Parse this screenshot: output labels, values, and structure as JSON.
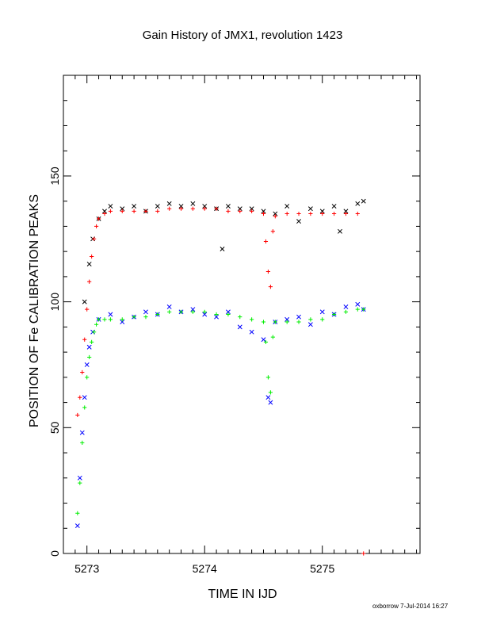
{
  "chart_data": {
    "type": "scatter",
    "title": "Gain History of JMX1, revolution 1423",
    "xlabel": "TIME IN IJD",
    "ylabel": "POSITION OF Fe CALIBRATION PEAKS",
    "xlim": [
      5272.8,
      5275.83
    ],
    "ylim": [
      0,
      190
    ],
    "x_ticks": [
      "5273",
      "5274",
      "5275"
    ],
    "y_ticks": [
      "0",
      "50",
      "100",
      "150"
    ],
    "grid": false,
    "legend": "none",
    "series": [
      {
        "marker": "x",
        "color": "#000000",
        "x": [
          5272.98,
          5273.02,
          5273.05,
          5273.1,
          5273.15,
          5273.2,
          5273.3,
          5273.4,
          5273.5,
          5273.6,
          5273.7,
          5273.8,
          5273.9,
          5274.0,
          5274.1,
          5274.15,
          5274.2,
          5274.3,
          5274.4,
          5274.5,
          5274.6,
          5274.7,
          5274.8,
          5274.9,
          5275.0,
          5275.1,
          5275.15,
          5275.2,
          5275.3,
          5275.35
        ],
        "y": [
          100,
          115,
          125,
          133,
          136,
          138,
          137,
          138,
          136,
          138,
          139,
          138,
          139,
          138,
          137,
          121,
          138,
          137,
          137,
          136,
          135,
          138,
          132,
          137,
          136,
          138,
          128,
          136,
          139,
          140
        ]
      },
      {
        "marker": "+",
        "color": "#ff0000",
        "x": [
          5272.92,
          5272.94,
          5272.96,
          5272.98,
          5273.0,
          5273.02,
          5273.04,
          5273.06,
          5273.08,
          5273.1,
          5273.15,
          5273.2,
          5273.3,
          5273.4,
          5273.5,
          5273.6,
          5273.7,
          5273.8,
          5273.9,
          5274.0,
          5274.1,
          5274.2,
          5274.3,
          5274.4,
          5274.5,
          5274.52,
          5274.54,
          5274.56,
          5274.58,
          5274.6,
          5274.7,
          5274.8,
          5274.9,
          5275.0,
          5275.1,
          5275.2,
          5275.3,
          5275.35
        ],
        "y": [
          55,
          62,
          72,
          85,
          97,
          108,
          118,
          125,
          130,
          133,
          135,
          136,
          136,
          136,
          136,
          136,
          137,
          137,
          137,
          137,
          137,
          136,
          136,
          136,
          135,
          124,
          112,
          106,
          128,
          134,
          135,
          135,
          135,
          135,
          135,
          135,
          135,
          0
        ]
      },
      {
        "marker": "x",
        "color": "#0000ff",
        "x": [
          5272.92,
          5272.94,
          5272.96,
          5272.98,
          5273.0,
          5273.02,
          5273.05,
          5273.1,
          5273.2,
          5273.3,
          5273.4,
          5273.5,
          5273.6,
          5273.7,
          5273.8,
          5273.9,
          5274.0,
          5274.1,
          5274.2,
          5274.3,
          5274.4,
          5274.5,
          5274.54,
          5274.56,
          5274.6,
          5274.7,
          5274.8,
          5274.9,
          5275.0,
          5275.1,
          5275.2,
          5275.3,
          5275.35
        ],
        "y": [
          11,
          30,
          48,
          62,
          75,
          82,
          88,
          93,
          95,
          92,
          94,
          96,
          95,
          98,
          96,
          97,
          95,
          94,
          96,
          90,
          88,
          85,
          62,
          60,
          92,
          93,
          94,
          91,
          96,
          95,
          98,
          99,
          97
        ]
      },
      {
        "marker": "+",
        "color": "#00ee00",
        "x": [
          5272.92,
          5272.94,
          5272.96,
          5272.98,
          5273.0,
          5273.02,
          5273.04,
          5273.06,
          5273.08,
          5273.1,
          5273.15,
          5273.2,
          5273.3,
          5273.4,
          5273.5,
          5273.6,
          5273.7,
          5273.8,
          5273.9,
          5274.0,
          5274.1,
          5274.2,
          5274.3,
          5274.4,
          5274.5,
          5274.52,
          5274.54,
          5274.56,
          5274.58,
          5274.6,
          5274.7,
          5274.8,
          5274.9,
          5275.0,
          5275.1,
          5275.2,
          5275.3,
          5275.35
        ],
        "y": [
          16,
          28,
          44,
          58,
          70,
          78,
          84,
          88,
          91,
          93,
          93,
          93,
          93,
          94,
          94,
          95,
          96,
          96,
          96,
          96,
          95,
          95,
          94,
          93,
          92,
          84,
          70,
          64,
          86,
          92,
          92,
          92,
          93,
          93,
          95,
          96,
          97,
          97
        ]
      }
    ]
  },
  "footer": {
    "credit": "oxborrow  7-Jul-2014 16:27"
  }
}
